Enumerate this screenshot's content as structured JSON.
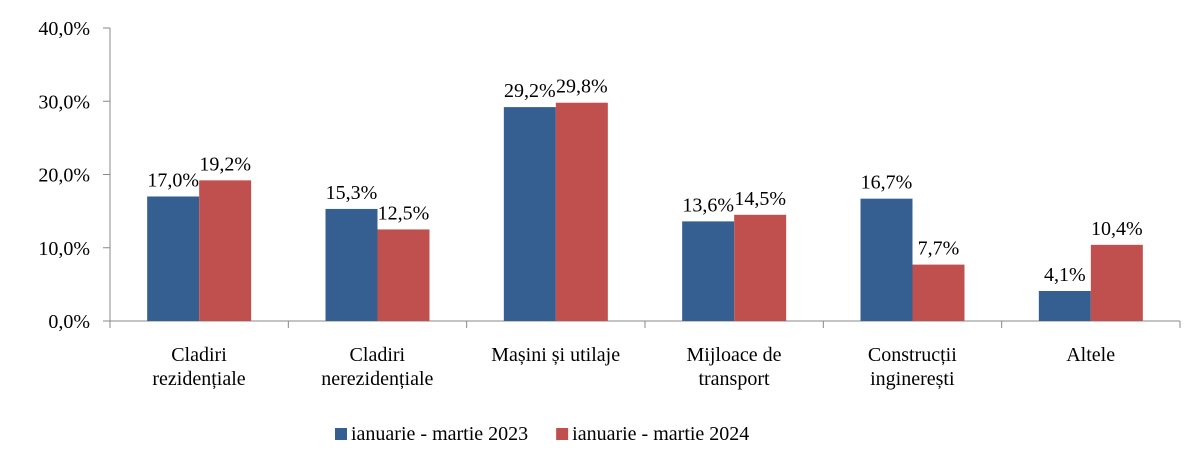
{
  "chart_data": {
    "type": "bar",
    "categories": [
      "Cladiri\nrezidențiale",
      "Cladiri\nnerezidențiale",
      "Mașini și utilaje",
      "Mijloace de\ntransport",
      "Construcții\ninginerești",
      "Altele"
    ],
    "series": [
      {
        "name": "ianuarie - martie 2023",
        "color": "#355f91",
        "values": [
          17.0,
          15.3,
          29.2,
          13.6,
          16.7,
          4.1
        ],
        "value_labels": [
          "17,0%",
          "15,3%",
          "29,2%",
          "13,6%",
          "16,7%",
          "4,1%"
        ]
      },
      {
        "name": "ianuarie - martie 2024",
        "color": "#c0504d",
        "values": [
          19.2,
          12.5,
          29.8,
          14.5,
          7.7,
          10.4
        ],
        "value_labels": [
          "19,2%",
          "12,5%",
          "29,8%",
          "14,5%",
          "7,7%",
          "10,4%"
        ]
      }
    ],
    "ylim": [
      0,
      40
    ],
    "yticks": [
      {
        "value": 0,
        "label": "0,0%"
      },
      {
        "value": 10,
        "label": "10,0%"
      },
      {
        "value": 20,
        "label": "20,0%"
      },
      {
        "value": 30,
        "label": "30,0%"
      },
      {
        "value": 40,
        "label": "40,0%"
      }
    ],
    "grid": false,
    "legend": "bottom"
  }
}
